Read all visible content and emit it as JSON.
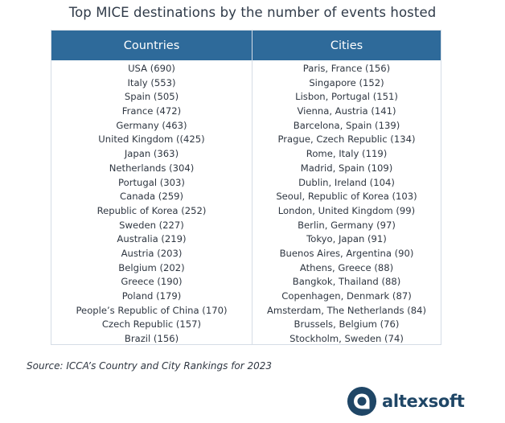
{
  "title": "Top MICE destinations by the number of events hosted",
  "table": {
    "headers": {
      "countries": "Countries",
      "cities": "Cities"
    },
    "countries": [
      "USA (690)",
      "Italy (553)",
      "Spain (505)",
      "France (472)",
      "Germany (463)",
      "United Kingdom ((425)",
      "Japan (363)",
      "Netherlands (304)",
      "Portugal (303)",
      "Canada (259)",
      "Republic of Korea (252)",
      "Sweden (227)",
      "Australia (219)",
      "Austria (203)",
      "Belgium (202)",
      "Greece (190)",
      "Poland (179)",
      "People’s Republic of China (170)",
      "Czech Republic (157)",
      "Brazil (156)"
    ],
    "cities": [
      "Paris, France (156)",
      "Singapore (152)",
      "Lisbon, Portugal (151)",
      "Vienna, Austria (141)",
      "Barcelona, Spain (139)",
      "Prague, Czech Republic (134)",
      "Rome, Italy (119)",
      "Madrid, Spain (109)",
      "Dublin, Ireland (104)",
      "Seoul, Republic of Korea (103)",
      "London, United Kingdom (99)",
      "Berlin, Germany (97)",
      "Tokyo, Japan (91)",
      "Buenos Aires, Argentina (90)",
      "Athens, Greece (88)",
      "Bangkok, Thailand (88)",
      "Copenhagen, Denmark (87)",
      "Amsterdam, The Netherlands (84)",
      "Brussels, Belgium (76)",
      "Stockholm, Sweden (74)"
    ]
  },
  "source": "Source: ICCA’s Country and City Rankings for 2023",
  "logo": {
    "text": "altexsoft",
    "icon": "altexsoft-logo-mark-icon"
  },
  "colors": {
    "header_bg": "#2e6a9a",
    "header_text": "#ffffff",
    "border": "#d5dde6",
    "logo": "#1f4666"
  }
}
